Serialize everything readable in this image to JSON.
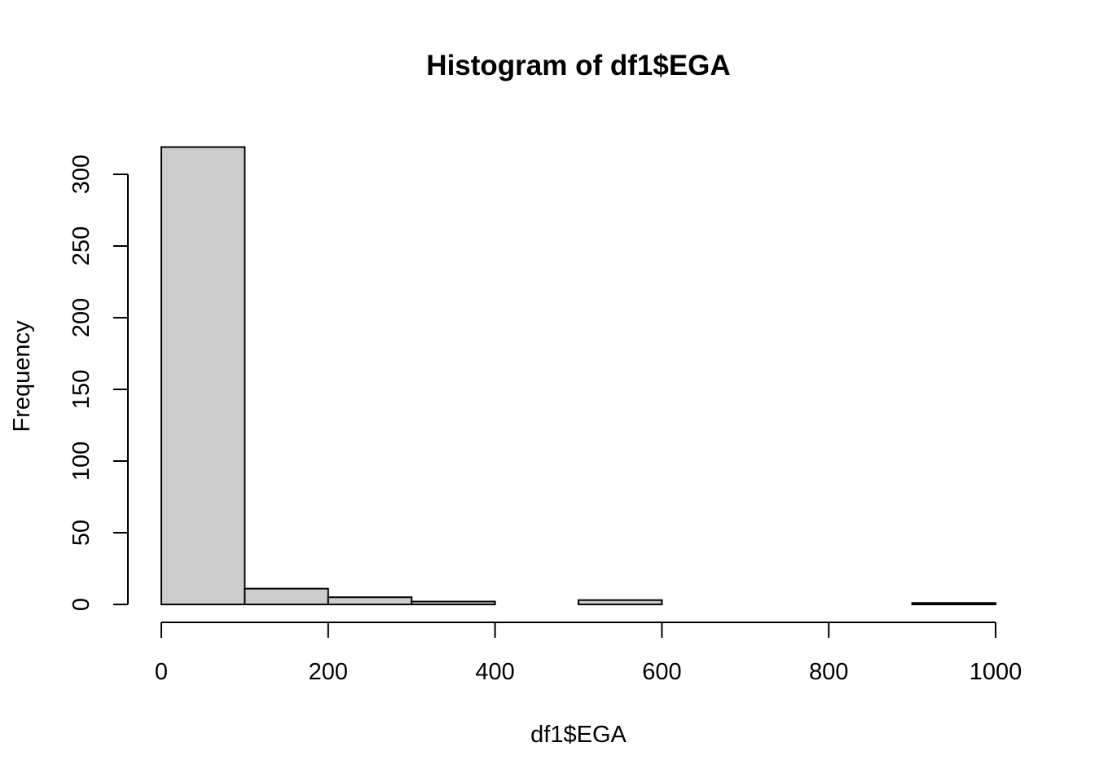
{
  "chart_data": {
    "type": "bar",
    "title": "Histogram of df1$EGA",
    "xlabel": "df1$EGA",
    "ylabel": "Frequency",
    "bins": [
      {
        "from": 0,
        "to": 100,
        "count": 319
      },
      {
        "from": 100,
        "to": 200,
        "count": 11
      },
      {
        "from": 200,
        "to": 300,
        "count": 5
      },
      {
        "from": 300,
        "to": 400,
        "count": 2
      },
      {
        "from": 400,
        "to": 500,
        "count": 0
      },
      {
        "from": 500,
        "to": 600,
        "count": 3
      },
      {
        "from": 600,
        "to": 700,
        "count": 0
      },
      {
        "from": 700,
        "to": 800,
        "count": 0
      },
      {
        "from": 800,
        "to": 900,
        "count": 0
      },
      {
        "from": 900,
        "to": 1000,
        "count": 1
      }
    ],
    "xlim": [
      0,
      1000
    ],
    "ylim": [
      0,
      319
    ],
    "x_ticks": [
      0,
      200,
      400,
      600,
      800,
      1000
    ],
    "x_tick_labels": [
      "0",
      "200",
      "400",
      "600",
      "800",
      "1000"
    ],
    "y_ticks": [
      0,
      50,
      100,
      150,
      200,
      250,
      300
    ],
    "y_tick_labels": [
      "0",
      "50",
      "100",
      "150",
      "200",
      "250",
      "300"
    ],
    "bar_color": "#cccccc",
    "grid": false,
    "legend": "none"
  }
}
